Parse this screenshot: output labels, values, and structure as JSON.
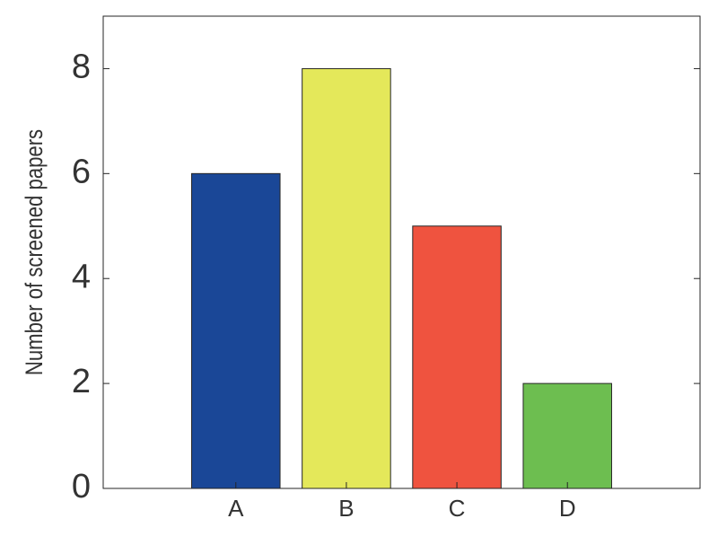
{
  "chart_data": {
    "type": "bar",
    "y_label": "Number of screened papers",
    "categories": [
      "A",
      "B",
      "C",
      "D"
    ],
    "values": [
      6,
      8,
      5,
      2
    ],
    "colors": [
      "#1a4797",
      "#e4e85a",
      "#ef533f",
      "#6dbe50"
    ],
    "ylim": [
      0,
      9
    ],
    "yticks": [
      0,
      2,
      4,
      6,
      8
    ],
    "grid": false
  }
}
